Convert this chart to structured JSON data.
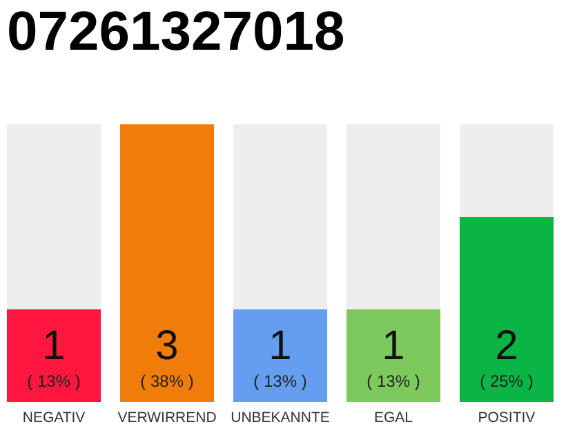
{
  "chart_data": {
    "type": "bar",
    "title": "07261327018",
    "categories": [
      "NEGATIV",
      "VERWIRREND",
      "UNBEKANNTE",
      "EGAL",
      "POSITIV"
    ],
    "colors": [
      "#ff173f",
      "#f07d0a",
      "#659df0",
      "#7dc95e",
      "#0ab545"
    ],
    "values": [
      1,
      3,
      1,
      1,
      2
    ],
    "data_labels": true,
    "ylim": [
      0,
      3
    ],
    "tick_labels": "x",
    "grid": false,
    "annotations": [
      "( 13% )",
      "( 38% )",
      "( 13% )",
      "( 13% )",
      "( 25% )"
    ]
  }
}
